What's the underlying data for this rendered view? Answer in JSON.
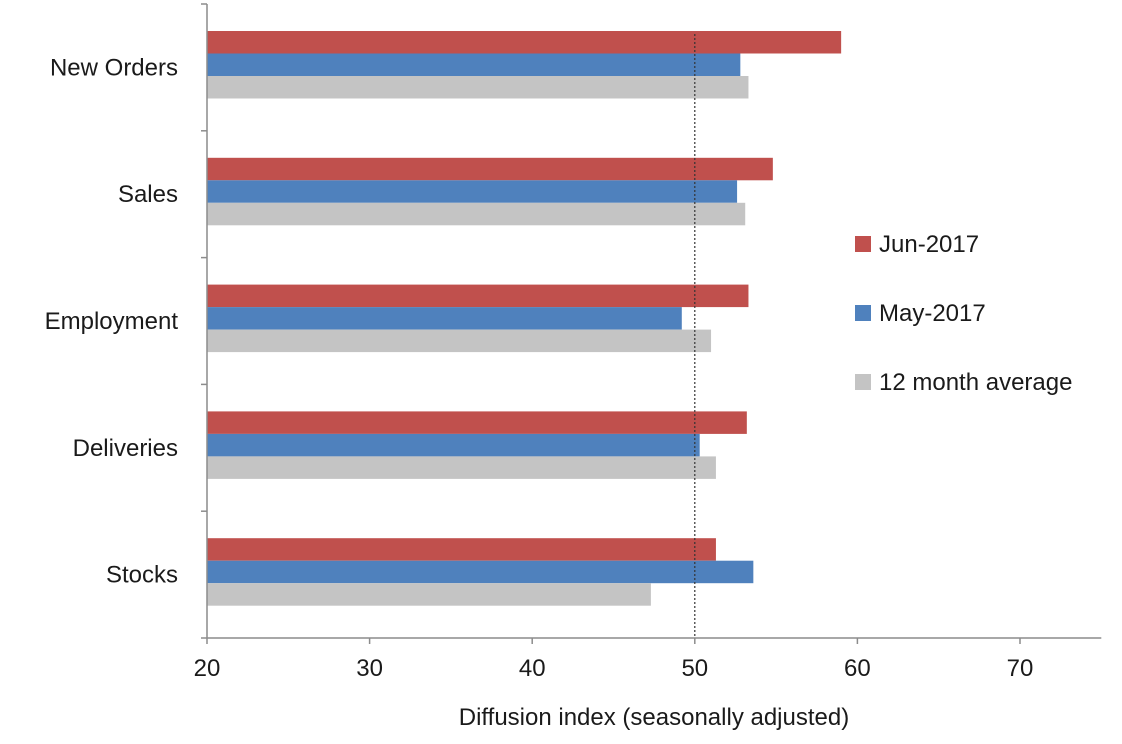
{
  "chart_data": {
    "type": "bar",
    "orientation": "horizontal",
    "categories": [
      "New Orders",
      "Sales",
      "Employment",
      "Deliveries",
      "Stocks"
    ],
    "series": [
      {
        "name": "Jun-2017",
        "color": "#c0504d",
        "values": [
          59.0,
          54.8,
          53.3,
          53.2,
          51.3
        ]
      },
      {
        "name": "May-2017",
        "color": "#4f81bd",
        "values": [
          52.8,
          52.6,
          49.2,
          50.3,
          53.6
        ]
      },
      {
        "name": "12 month average",
        "color": "#c4c4c4",
        "values": [
          53.3,
          53.1,
          51.0,
          51.3,
          47.3
        ]
      }
    ],
    "xlabel": "Diffusion index (seasonally adjusted)",
    "ylabel": "",
    "xlim": [
      20,
      75
    ],
    "xticks": [
      20,
      30,
      40,
      50,
      60,
      70
    ],
    "reference_line": 50,
    "legend_position": "right",
    "grid": false
  }
}
